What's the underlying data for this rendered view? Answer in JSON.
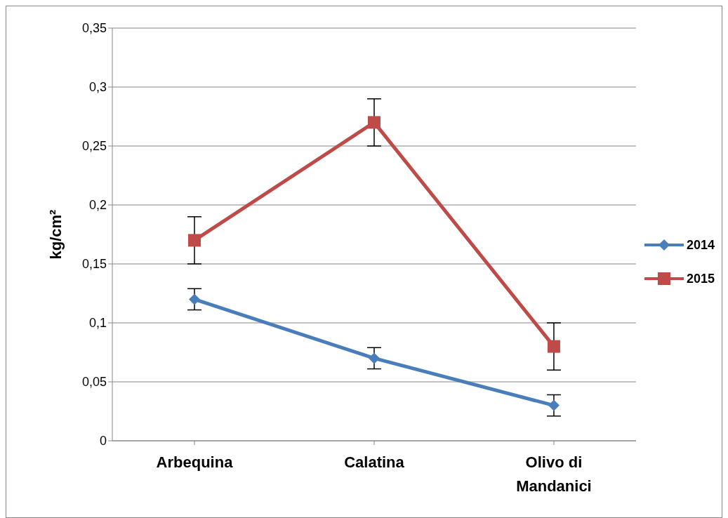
{
  "chart_data": {
    "type": "line",
    "ylabel": "kg/cm²",
    "categories": [
      "Arbequina",
      "Calatina",
      "Olivo di Mandanici"
    ],
    "series": [
      {
        "name": "2014",
        "color": "#4a7ebb",
        "values": [
          0.12,
          0.07,
          0.03
        ],
        "errors": [
          0.009,
          0.009,
          0.009
        ],
        "marker": "diamond"
      },
      {
        "name": "2015",
        "color": "#be4b48",
        "values": [
          0.17,
          0.27,
          0.08
        ],
        "errors": [
          0.02,
          0.02,
          0.02
        ],
        "marker": "square"
      }
    ],
    "ylim": [
      0,
      0.35
    ],
    "yticks": [
      {
        "value": 0,
        "label": "0"
      },
      {
        "value": 0.05,
        "label": "0,05"
      },
      {
        "value": 0.1,
        "label": "0,1"
      },
      {
        "value": 0.15,
        "label": "0,15"
      },
      {
        "value": 0.2,
        "label": "0,2"
      },
      {
        "value": 0.25,
        "label": "0,25"
      },
      {
        "value": 0.3,
        "label": "0,3"
      },
      {
        "value": 0.35,
        "label": "0,35"
      }
    ],
    "grid": "y",
    "legend": "right",
    "line_style": "solid"
  }
}
